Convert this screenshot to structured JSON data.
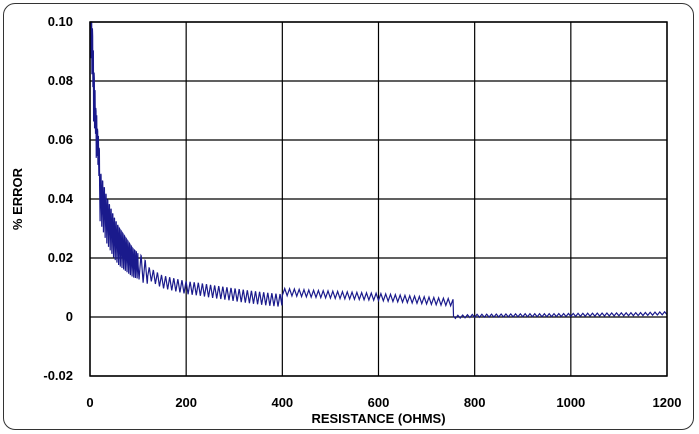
{
  "chart_data": {
    "type": "line",
    "title": "",
    "xlabel": "RESISTANCE (OHMS)",
    "ylabel": "% ERROR",
    "xlim": [
      0,
      1200
    ],
    "ylim": [
      -0.02,
      0.1
    ],
    "x_ticks": [
      0,
      200,
      400,
      600,
      800,
      1000,
      1200
    ],
    "y_ticks": [
      -0.02,
      0,
      0.02,
      0.04,
      0.06,
      0.08,
      0.1
    ],
    "y_tick_labels": [
      "-0.02",
      "0",
      "0.02",
      "0.04",
      "0.06",
      "0.08",
      "0.10"
    ],
    "x_tick_labels": [
      "0",
      "200",
      "400",
      "600",
      "800",
      "1000",
      "1200"
    ],
    "grid": true,
    "line_color": "#1a1a8c",
    "series": [
      {
        "x": [
          0,
          2,
          4,
          6,
          8,
          10,
          12,
          14,
          16,
          18,
          20,
          25,
          30,
          35,
          40,
          45,
          50,
          60,
          70,
          80,
          90,
          100,
          110,
          120,
          130,
          140,
          150,
          175,
          200,
          225,
          250,
          275,
          300,
          325,
          350,
          375,
          399,
          400,
          425,
          450,
          500,
          550,
          600,
          650,
          700,
          750,
          755,
          756,
          800,
          850,
          900,
          950,
          1000,
          1050,
          1100,
          1150,
          1200
        ],
        "y": [
          0.1,
          0.098,
          0.09,
          0.08,
          0.072,
          0.064,
          0.058,
          0.054,
          0.05,
          0.046,
          0.043,
          0.04,
          0.037,
          0.034,
          0.032,
          0.03,
          0.028,
          0.025,
          0.023,
          0.021,
          0.019,
          0.018,
          0.016,
          0.015,
          0.014,
          0.013,
          0.012,
          0.011,
          0.01,
          0.0095,
          0.0088,
          0.0082,
          0.0076,
          0.007,
          0.0065,
          0.006,
          0.0056,
          0.0085,
          0.0083,
          0.008,
          0.0076,
          0.0072,
          0.0068,
          0.0062,
          0.0056,
          0.005,
          0.0048,
          0.0,
          0.0004,
          0.0005,
          0.0006,
          0.0006,
          0.0007,
          0.0008,
          0.0009,
          0.001,
          0.0013
        ]
      }
    ]
  }
}
